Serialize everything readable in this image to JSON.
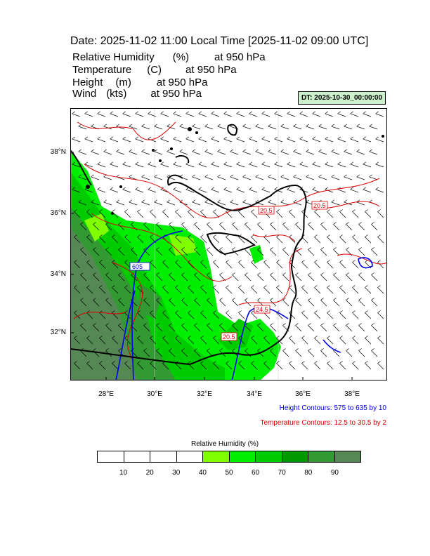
{
  "title": "Date: 2025-11-02  11:00 Local Time [2025-11-02  09:00 UTC]",
  "fields": [
    {
      "name": "Relative Humidity",
      "unit": "(%)",
      "at": "at   950 hPa"
    },
    {
      "name": "Temperature",
      "unit": "(C)",
      "at": "at   950 hPa"
    },
    {
      "name": "Height",
      "unit": "(m)",
      "at": "at   950 hPa"
    },
    {
      "name": "Wind",
      "unit": "(kts)",
      "at": "at   950 hPa"
    }
  ],
  "dt_label": "DT: 2025-10-30_00:00:00",
  "lat_labels": [
    "38°N",
    "36°N",
    "34°N",
    "32°N"
  ],
  "lon_labels": [
    "28°E",
    "30°E",
    "32°E",
    "34°E",
    "36°E",
    "38°E"
  ],
  "contour_labels": {
    "height": [
      "605"
    ],
    "temperature": [
      "20.5",
      "20.5",
      "24.5",
      "20.5"
    ]
  },
  "height_contours_note": "Height Contours: 575 to 635 by 10",
  "temperature_contours_note": "Temperature Contours: 12.5 to 30.5 by 2",
  "colorbar": {
    "title": "Relative Humidity  (%)",
    "labels": [
      "10",
      "20",
      "30",
      "40",
      "50",
      "60",
      "70",
      "80",
      "90"
    ],
    "colors": [
      "#ffffff",
      "#ffffff",
      "#ffffff",
      "#ffffff",
      "#7fff00",
      "#00ee00",
      "#00cc00",
      "#009900",
      "#339933",
      "#558855"
    ]
  },
  "colors": {
    "height_contour": "#0000ee",
    "temperature_contour": "#dd0000",
    "coastline": "#000000"
  }
}
